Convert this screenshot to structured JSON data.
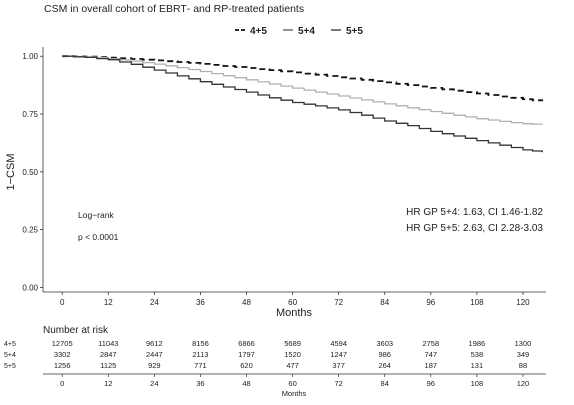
{
  "chart_data": {
    "type": "line",
    "title": "CSM in overall cohort of EBRT‐ and RP‐treated patients",
    "xlabel": "Months",
    "ylabel": "1−CSM",
    "xlim": [
      -5,
      126
    ],
    "ylim": [
      -0.02,
      1.04
    ],
    "x_ticks": [
      0,
      12,
      24,
      36,
      48,
      60,
      72,
      84,
      96,
      108,
      120
    ],
    "y_ticks": [
      {
        "value": 0.0,
        "label": "0.00"
      },
      {
        "value": 0.25,
        "label": "0.25"
      },
      {
        "value": 0.5,
        "label": "0.50"
      },
      {
        "value": 0.75,
        "label": "0.75"
      },
      {
        "value": 1.0,
        "label": "1.00"
      }
    ],
    "grid": false,
    "legend_position": "top",
    "series": [
      {
        "name": "4+5",
        "dash": "dashed",
        "color": "#111111",
        "x": [
          0,
          6,
          12,
          18,
          24,
          30,
          36,
          42,
          48,
          54,
          60,
          66,
          72,
          78,
          84,
          90,
          96,
          102,
          108,
          114,
          120,
          125
        ],
        "y": [
          1.0,
          0.998,
          0.994,
          0.988,
          0.982,
          0.975,
          0.967,
          0.958,
          0.949,
          0.94,
          0.93,
          0.92,
          0.909,
          0.898,
          0.887,
          0.875,
          0.863,
          0.851,
          0.839,
          0.826,
          0.814,
          0.805
        ]
      },
      {
        "name": "5+4",
        "dash": "solid",
        "color": "#b0b0b0",
        "x": [
          0,
          6,
          12,
          18,
          24,
          30,
          36,
          42,
          48,
          54,
          60,
          66,
          72,
          78,
          84,
          90,
          96,
          102,
          108,
          114,
          120,
          125
        ],
        "y": [
          1.0,
          0.997,
          0.99,
          0.979,
          0.966,
          0.951,
          0.934,
          0.916,
          0.898,
          0.88,
          0.862,
          0.845,
          0.828,
          0.811,
          0.794,
          0.777,
          0.761,
          0.745,
          0.73,
          0.718,
          0.708,
          0.705
        ]
      },
      {
        "name": "5+5",
        "dash": "solid",
        "color": "#333333",
        "x": [
          0,
          6,
          12,
          18,
          24,
          30,
          36,
          42,
          48,
          54,
          60,
          66,
          72,
          78,
          84,
          90,
          96,
          102,
          108,
          114,
          120,
          125
        ],
        "y": [
          1.0,
          0.995,
          0.985,
          0.965,
          0.94,
          0.915,
          0.89,
          0.867,
          0.845,
          0.82,
          0.8,
          0.785,
          0.768,
          0.745,
          0.72,
          0.7,
          0.675,
          0.655,
          0.635,
          0.615,
          0.595,
          0.585
        ]
      }
    ],
    "annotations": {
      "logrank_label": "Log−rank",
      "logrank_p": "p < 0.0001",
      "hr_54": "HR GP 5+4: 1.63, CI 1.46-1.82",
      "hr_55": "HR GP 5+5: 2.63, CI 2.28-3.03"
    },
    "risk_table": {
      "title": "Number at risk",
      "xlabel": "Months",
      "rows": [
        {
          "label": "4+5",
          "values": [
            "12705",
            "11043",
            "9612",
            "8156",
            "6866",
            "5689",
            "4594",
            "3603",
            "2758",
            "1986",
            "1300"
          ]
        },
        {
          "label": "5+4",
          "values": [
            "3302",
            "2847",
            "2447",
            "2113",
            "1797",
            "1520",
            "1247",
            "986",
            "747",
            "538",
            "349"
          ]
        },
        {
          "label": "5+5",
          "values": [
            "1256",
            "1125",
            "929",
            "771",
            "620",
            "477",
            "377",
            "264",
            "187",
            "131",
            "88"
          ]
        }
      ]
    }
  }
}
